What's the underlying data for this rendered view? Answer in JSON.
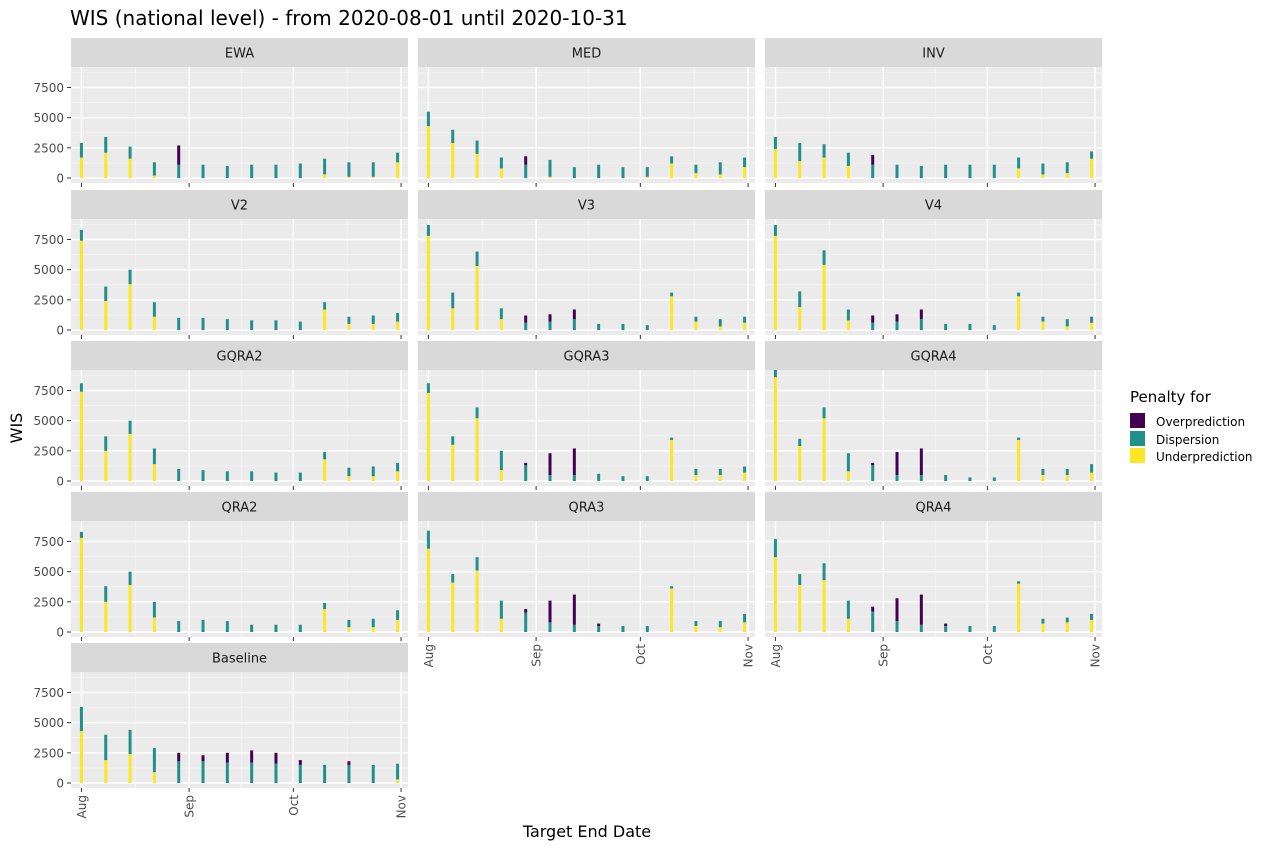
{
  "chart_data": {
    "type": "bar",
    "title": "WIS (national level) - from 2020-08-01 until 2020-10-31",
    "xlabel": "Target End Date",
    "ylabel": "WIS",
    "x_ticks": [
      "Aug",
      "Sep",
      "Oct",
      "Nov"
    ],
    "y_ticks": [
      "0",
      "2500",
      "5000",
      "7500"
    ],
    "ylim": [
      0,
      9200
    ],
    "stacked": true,
    "legend": {
      "title": "Penalty for",
      "position": "right",
      "items": [
        {
          "key": "over",
          "label": "Overprediction",
          "color": "#440154"
        },
        {
          "key": "disp",
          "label": "Dispersion",
          "color": "#21908C"
        },
        {
          "key": "under",
          "label": "Underprediction",
          "color": "#FDE725"
        }
      ]
    },
    "x_dates": [
      "2020-08-01",
      "2020-08-08",
      "2020-08-15",
      "2020-08-22",
      "2020-08-29",
      "2020-09-05",
      "2020-09-12",
      "2020-09-19",
      "2020-09-26",
      "2020-10-03",
      "2020-10-10",
      "2020-10-17",
      "2020-10-24",
      "2020-10-31"
    ],
    "panels": [
      {
        "name": "EWA",
        "under": [
          1700,
          2100,
          1600,
          200,
          0,
          0,
          0,
          0,
          0,
          0,
          300,
          100,
          100,
          1300
        ],
        "disp": [
          1200,
          1300,
          1000,
          1100,
          1100,
          1100,
          1000,
          1100,
          1100,
          1200,
          1300,
          1200,
          1200,
          800
        ],
        "over": [
          0,
          0,
          0,
          0,
          1600,
          0,
          0,
          0,
          0,
          0,
          0,
          0,
          0,
          0
        ]
      },
      {
        "name": "MED",
        "under": [
          4300,
          2900,
          2000,
          800,
          0,
          100,
          0,
          0,
          0,
          100,
          1200,
          400,
          300,
          900
        ],
        "disp": [
          1200,
          1100,
          1100,
          900,
          1100,
          1400,
          900,
          1100,
          900,
          800,
          600,
          700,
          1000,
          800
        ],
        "over": [
          0,
          0,
          0,
          0,
          700,
          0,
          0,
          0,
          0,
          0,
          0,
          0,
          0,
          0
        ]
      },
      {
        "name": "INV",
        "under": [
          2400,
          1400,
          1700,
          1000,
          0,
          0,
          0,
          0,
          0,
          0,
          800,
          300,
          400,
          1600
        ],
        "disp": [
          1000,
          1500,
          1100,
          1100,
          1100,
          1100,
          1000,
          1100,
          1100,
          1100,
          900,
          900,
          900,
          600
        ],
        "over": [
          0,
          0,
          0,
          0,
          800,
          0,
          0,
          0,
          0,
          0,
          0,
          0,
          0,
          0
        ]
      },
      {
        "name": "V2",
        "under": [
          7400,
          2400,
          3800,
          1100,
          0,
          0,
          0,
          0,
          0,
          0,
          1700,
          500,
          500,
          700
        ],
        "disp": [
          900,
          1200,
          1200,
          1200,
          1000,
          1000,
          900,
          800,
          800,
          700,
          600,
          600,
          700,
          700
        ],
        "over": [
          0,
          0,
          0,
          0,
          0,
          0,
          0,
          0,
          0,
          0,
          0,
          0,
          0,
          0
        ]
      },
      {
        "name": "V3",
        "under": [
          7800,
          1800,
          5300,
          900,
          0,
          0,
          0,
          0,
          0,
          0,
          2800,
          700,
          300,
          600
        ],
        "disp": [
          900,
          1300,
          1200,
          900,
          600,
          700,
          900,
          500,
          500,
          400,
          300,
          400,
          600,
          500
        ],
        "over": [
          0,
          0,
          0,
          0,
          600,
          600,
          800,
          0,
          0,
          0,
          0,
          0,
          0,
          0
        ]
      },
      {
        "name": "V4",
        "under": [
          7800,
          1900,
          5400,
          800,
          0,
          0,
          0,
          0,
          0,
          0,
          2800,
          700,
          300,
          600
        ],
        "disp": [
          900,
          1300,
          1200,
          900,
          600,
          700,
          900,
          500,
          500,
          400,
          300,
          400,
          600,
          500
        ],
        "over": [
          0,
          0,
          0,
          0,
          600,
          600,
          800,
          0,
          0,
          0,
          0,
          0,
          0,
          0
        ]
      },
      {
        "name": "GQRA2",
        "under": [
          7400,
          2500,
          3900,
          1400,
          0,
          0,
          0,
          0,
          0,
          0,
          1800,
          400,
          400,
          800
        ],
        "disp": [
          700,
          1200,
          1100,
          1300,
          1000,
          900,
          800,
          800,
          700,
          700,
          600,
          700,
          800,
          700
        ],
        "over": [
          0,
          0,
          0,
          0,
          0,
          0,
          0,
          0,
          0,
          0,
          0,
          0,
          0,
          0
        ]
      },
      {
        "name": "GQRA3",
        "under": [
          7300,
          3000,
          5200,
          900,
          0,
          0,
          0,
          0,
          0,
          0,
          3400,
          500,
          500,
          700
        ],
        "disp": [
          800,
          700,
          900,
          1600,
          1300,
          500,
          500,
          600,
          400,
          400,
          200,
          500,
          500,
          500
        ],
        "over": [
          0,
          0,
          0,
          0,
          200,
          1800,
          2200,
          0,
          0,
          0,
          0,
          0,
          0,
          0
        ]
      },
      {
        "name": "GQRA4",
        "under": [
          8600,
          2900,
          5200,
          800,
          0,
          0,
          0,
          0,
          0,
          0,
          3400,
          500,
          500,
          700
        ],
        "disp": [
          600,
          600,
          900,
          1500,
          1300,
          500,
          500,
          500,
          300,
          300,
          200,
          500,
          500,
          700
        ],
        "over": [
          0,
          0,
          0,
          0,
          200,
          1900,
          2200,
          0,
          0,
          0,
          0,
          0,
          0,
          0
        ]
      },
      {
        "name": "QRA2",
        "under": [
          7800,
          2500,
          3900,
          1200,
          0,
          0,
          0,
          0,
          0,
          0,
          1900,
          400,
          400,
          1000
        ],
        "disp": [
          500,
          1300,
          1100,
          1300,
          900,
          1000,
          900,
          600,
          600,
          600,
          500,
          600,
          700,
          800
        ],
        "over": [
          0,
          0,
          0,
          0,
          0,
          0,
          0,
          0,
          0,
          0,
          0,
          0,
          0,
          0
        ]
      },
      {
        "name": "QRA3",
        "under": [
          6900,
          4100,
          5100,
          1100,
          0,
          0,
          0,
          0,
          0,
          0,
          3600,
          500,
          400,
          800
        ],
        "disp": [
          1500,
          700,
          1100,
          1500,
          1600,
          800,
          600,
          500,
          500,
          500,
          200,
          400,
          500,
          700
        ],
        "over": [
          0,
          0,
          0,
          0,
          300,
          1800,
          2500,
          200,
          0,
          0,
          0,
          0,
          0,
          0
        ]
      },
      {
        "name": "QRA4",
        "under": [
          6200,
          3900,
          4300,
          1100,
          0,
          0,
          0,
          0,
          0,
          0,
          4000,
          700,
          800,
          1000
        ],
        "disp": [
          1500,
          900,
          1400,
          1500,
          1700,
          900,
          600,
          500,
          500,
          500,
          200,
          400,
          400,
          500
        ],
        "over": [
          0,
          0,
          0,
          0,
          400,
          1900,
          2500,
          200,
          0,
          0,
          0,
          0,
          0,
          0
        ]
      },
      {
        "name": "Baseline",
        "under": [
          4300,
          1900,
          2400,
          900,
          0,
          0,
          0,
          0,
          0,
          0,
          0,
          0,
          0,
          300
        ],
        "disp": [
          2000,
          2100,
          2000,
          2000,
          1800,
          1800,
          1700,
          1700,
          1600,
          1500,
          1500,
          1500,
          1500,
          1300
        ],
        "over": [
          0,
          0,
          0,
          0,
          700,
          500,
          800,
          1000,
          900,
          400,
          0,
          300,
          0,
          0
        ]
      }
    ]
  }
}
